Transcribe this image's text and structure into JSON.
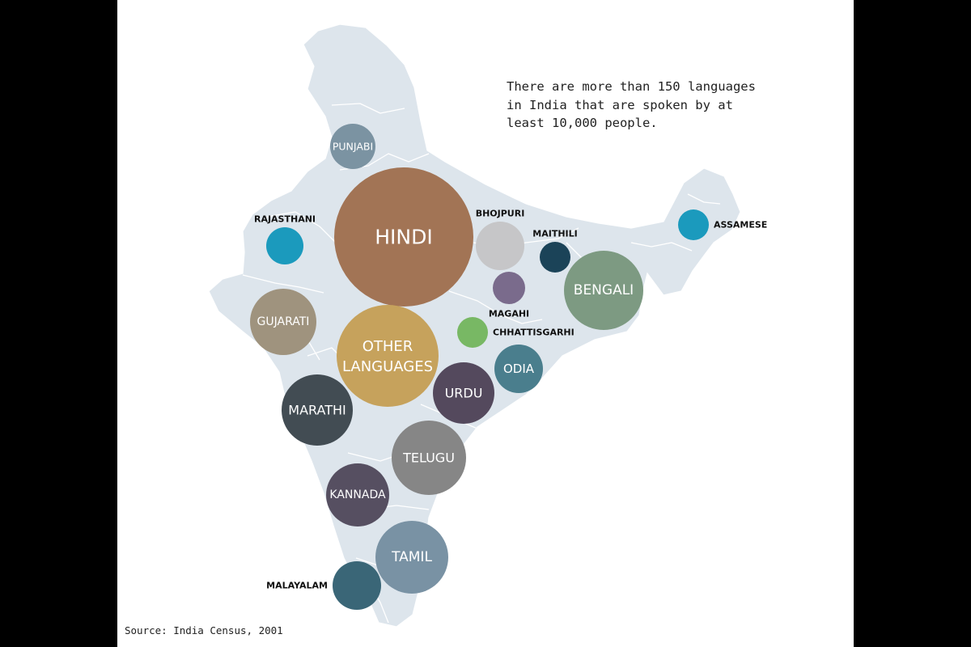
{
  "note_text": "There are more than 150 languages\nin India that are spoken by at\nleast 10,000 people.",
  "source_text": "Source: India Census, 2001",
  "colors": {
    "background_frame": "#000000",
    "canvas": "#ffffff",
    "map_fill": "#dde5ec",
    "map_border": "#ffffff"
  },
  "chart_data": {
    "type": "bubble",
    "bubbles": [
      {
        "label": "HINDI",
        "label_position": "inside",
        "color": "#a27455"
      },
      {
        "label": "OTHER LANGUAGES",
        "label_position": "inside",
        "color": "#c6a25c"
      },
      {
        "label": "BENGALI",
        "label_position": "inside",
        "color": "#7d9a82"
      },
      {
        "label": "TELUGU",
        "label_position": "inside",
        "color": "#868686"
      },
      {
        "label": "MARATHI",
        "label_position": "inside",
        "color": "#424c53"
      },
      {
        "label": "TAMIL",
        "label_position": "inside",
        "color": "#7992a4"
      },
      {
        "label": "URDU",
        "label_position": "inside",
        "color": "#54495d"
      },
      {
        "label": "KANNADA",
        "label_position": "inside",
        "color": "#564f61"
      },
      {
        "label": "GUJARATI",
        "label_position": "inside",
        "color": "#9f937e"
      },
      {
        "label": "ODIA",
        "label_position": "inside",
        "color": "#4a7e8d"
      },
      {
        "label": "MALAYALAM",
        "label_position": "left",
        "color": "#3a6677"
      },
      {
        "label": "PUNJABI",
        "label_position": "inside",
        "color": "#7b93a2"
      },
      {
        "label": "BHOJPURI",
        "label_position": "above",
        "color": "#c6c6c8"
      },
      {
        "label": "RAJASTHANI",
        "label_position": "above",
        "color": "#1b9abd"
      },
      {
        "label": "MAITHILI",
        "label_position": "above",
        "color": "#1b4358"
      },
      {
        "label": "MAGAHI",
        "label_position": "below",
        "color": "#7a6b8c"
      },
      {
        "label": "ASSAMESE",
        "label_position": "right",
        "color": "#1b9abd"
      },
      {
        "label": "CHHATTISGARHI",
        "label_position": "right",
        "color": "#78b864"
      }
    ]
  }
}
